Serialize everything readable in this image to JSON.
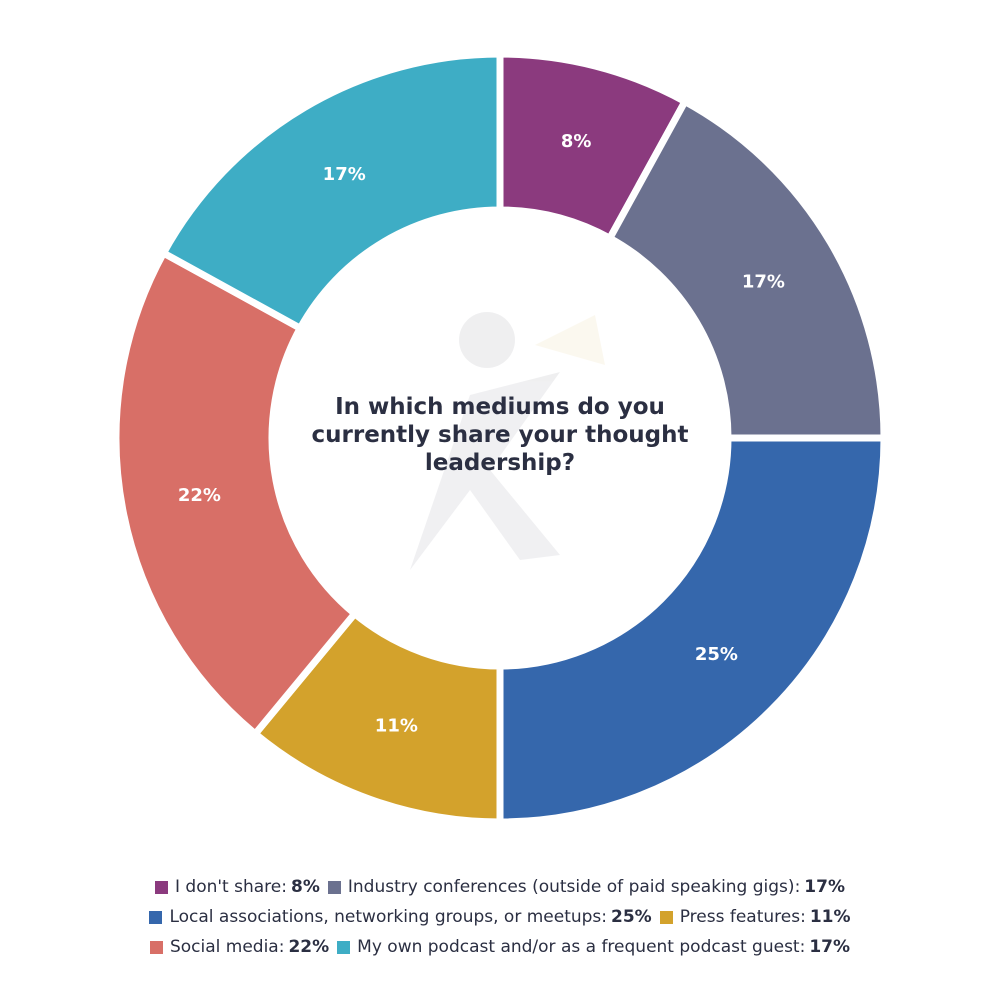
{
  "chart_data": {
    "type": "pie",
    "title": "In which mediums do you currently share your thought leadership?",
    "slices": [
      {
        "label": "I don't share",
        "value": 8,
        "display": "8%",
        "color": "#8b3a7e"
      },
      {
        "label": "Industry conferences (outside of paid speaking gigs)",
        "value": 17,
        "display": "17%",
        "color": "#6b718f"
      },
      {
        "label": "Local associations, networking groups, or meetups",
        "value": 25,
        "display": "25%",
        "color": "#3567ac"
      },
      {
        "label": "Press features",
        "value": 11,
        "display": "11%",
        "color": "#d3a22c"
      },
      {
        "label": "Social media",
        "value": 22,
        "display": "22%",
        "color": "#d86f67"
      },
      {
        "label": "My own podcast and/or as a frequent podcast guest",
        "value": 17,
        "display": "17%",
        "color": "#3eadc5"
      }
    ],
    "legend_placement": "bottom"
  }
}
